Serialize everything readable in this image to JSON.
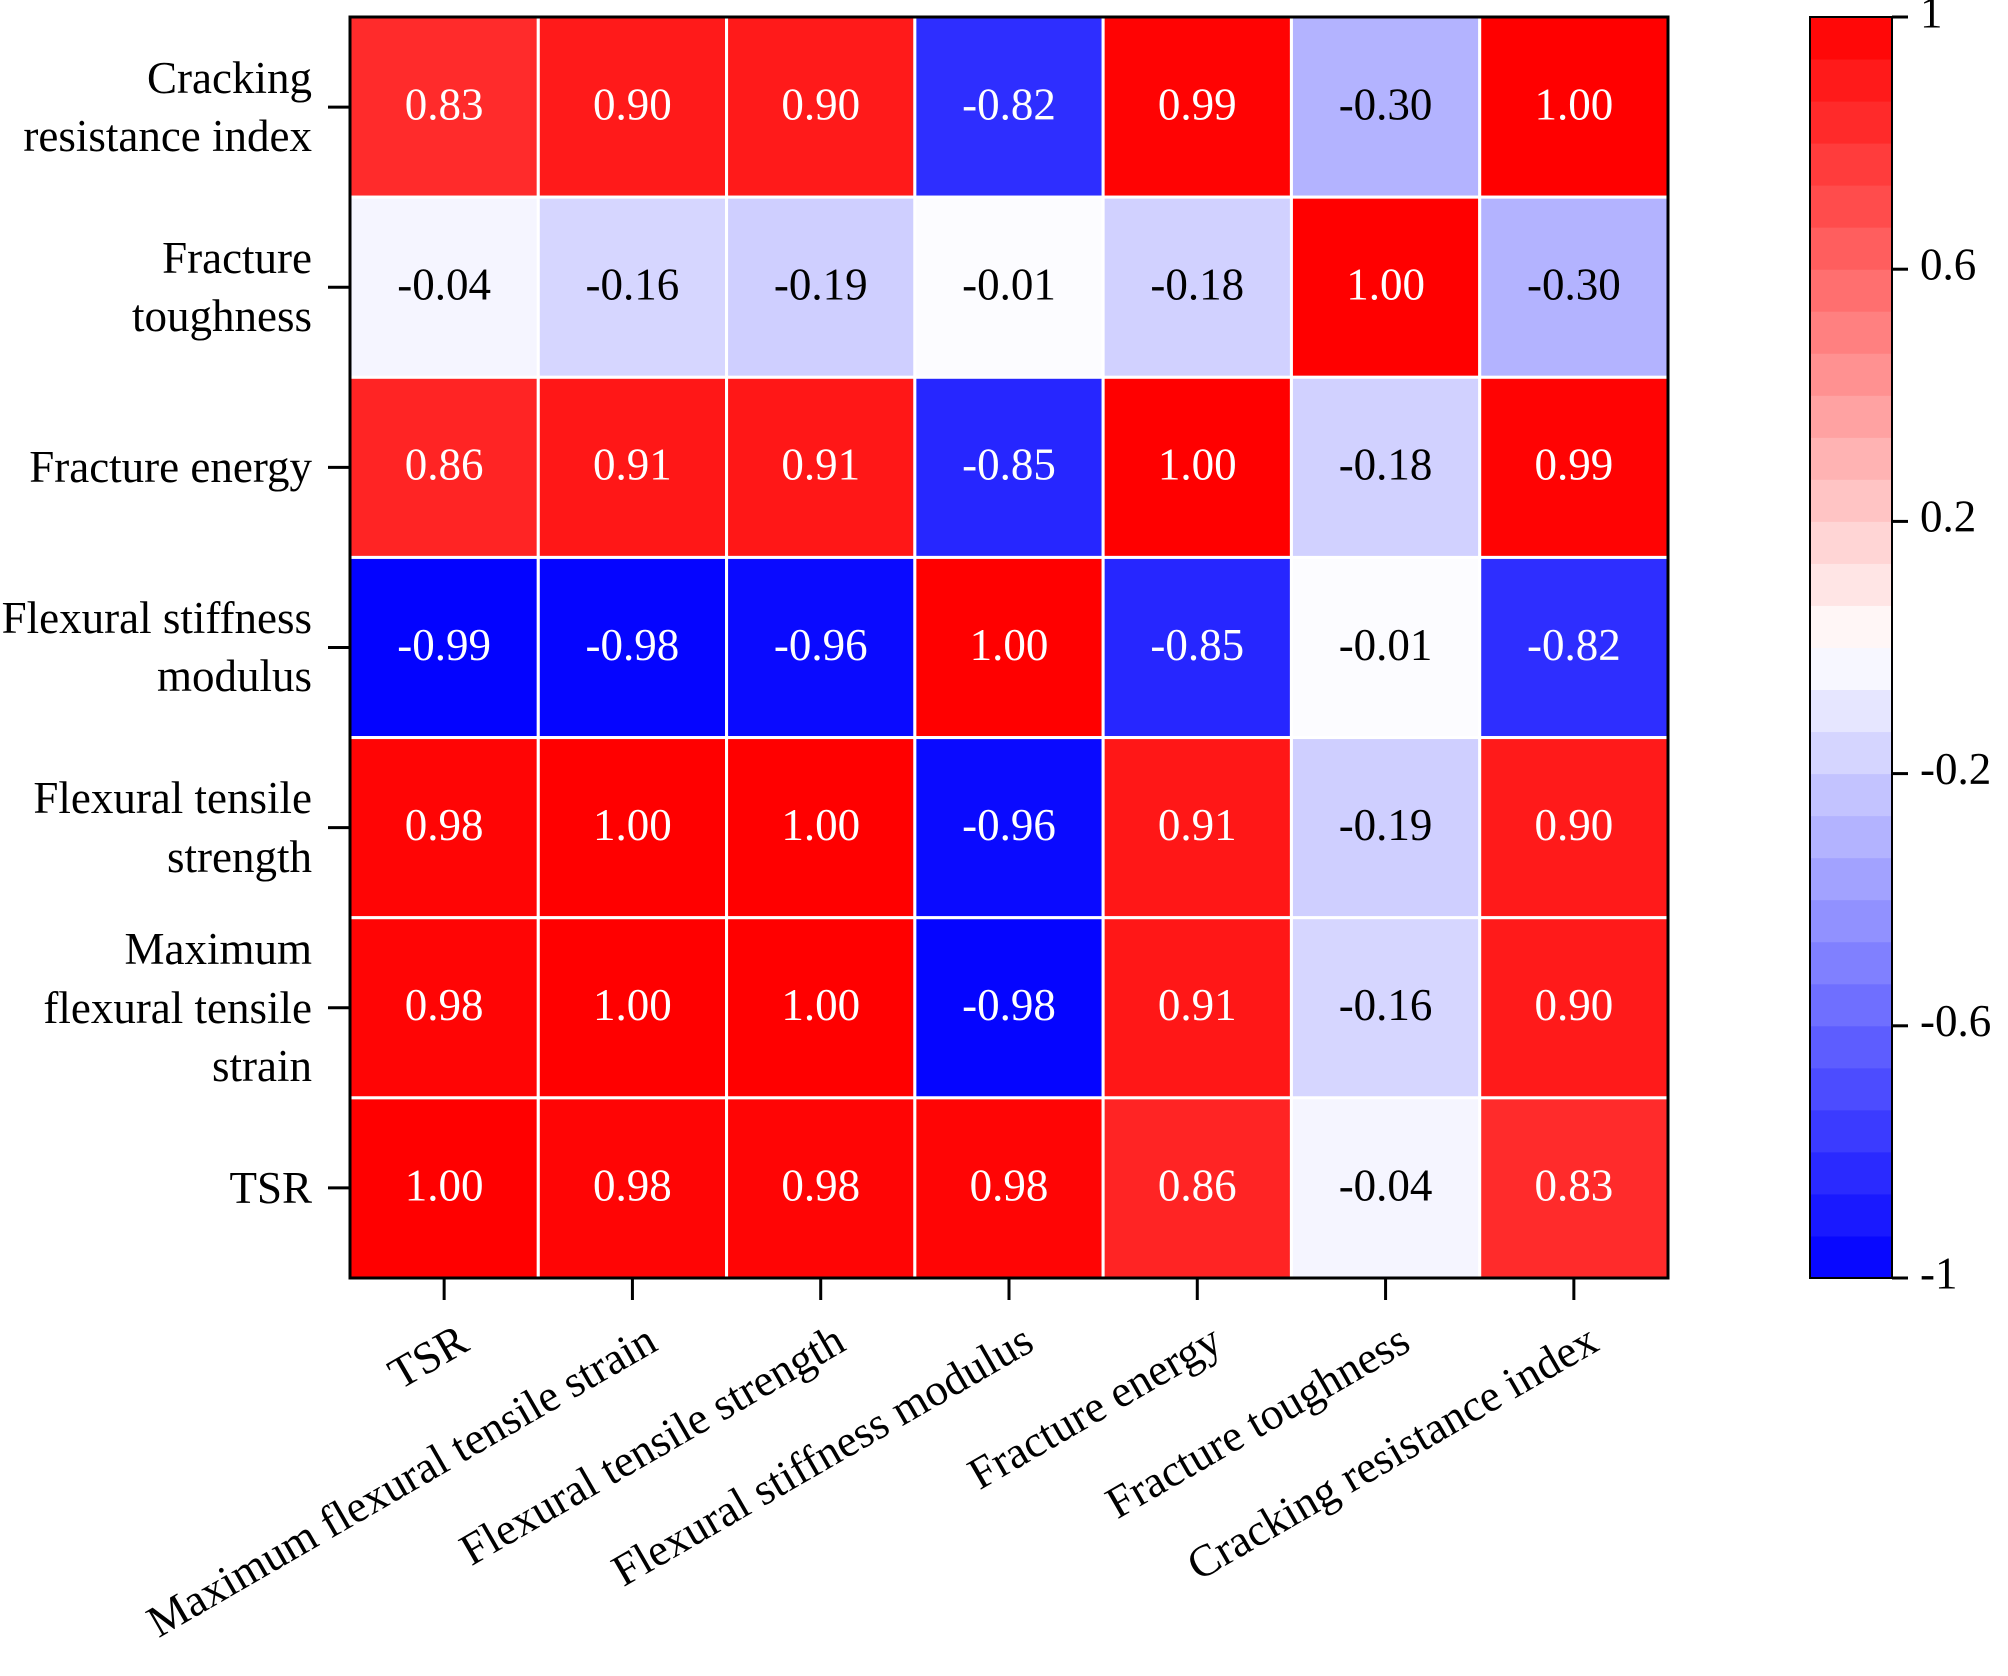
{
  "chart_data": {
    "type": "heatmap",
    "x_categories": [
      "TSR",
      "Maximum flexural tensile strain",
      "Flexural tensile strength",
      "Flexural stiffness modulus",
      "Fracture energy",
      "Fracture toughness",
      "Cracking resistance index"
    ],
    "y_categories": [
      "Cracking resistance index",
      "Fracture toughness",
      "Fracture energy",
      "Flexural stiffness modulus",
      "Flexural tensile strength",
      "Maximum flexural tensile strain",
      "TSR"
    ],
    "values": [
      [
        0.83,
        0.9,
        0.9,
        -0.82,
        0.99,
        -0.3,
        1
      ],
      [
        -0.04,
        -0.16,
        -0.19,
        -0.01,
        -0.18,
        1,
        -0.3
      ],
      [
        0.86,
        0.91,
        0.91,
        -0.85,
        1,
        -0.18,
        0.99
      ],
      [
        -0.99,
        -0.98,
        -0.96,
        1,
        -0.85,
        -0.01,
        -0.82
      ],
      [
        0.98,
        1,
        1,
        -0.96,
        0.91,
        -0.19,
        0.9
      ],
      [
        0.98,
        1,
        1,
        -0.98,
        0.91,
        -0.16,
        0.9
      ],
      [
        1,
        0.98,
        0.98,
        0.98,
        0.86,
        -0.04,
        0.83
      ]
    ],
    "value_labels": [
      [
        "0.83",
        "0.90",
        "0.90",
        "-0.82",
        "0.99",
        "-0.30",
        "1.00"
      ],
      [
        "-0.04",
        "-0.16",
        "-0.19",
        "-0.01",
        "-0.18",
        "1.00",
        "-0.30"
      ],
      [
        "0.86",
        "0.91",
        "0.91",
        "-0.85",
        "1.00",
        "-0.18",
        "0.99"
      ],
      [
        "-0.99",
        "-0.98",
        "-0.96",
        "1.00",
        "-0.85",
        "-0.01",
        "-0.82"
      ],
      [
        "0.98",
        "1.00",
        "1.00",
        "-0.96",
        "0.91",
        "-0.19",
        "0.90"
      ],
      [
        "0.98",
        "1.00",
        "1.00",
        "-0.98",
        "0.91",
        "-0.16",
        "0.90"
      ],
      [
        "1.00",
        "0.98",
        "0.98",
        "0.98",
        "0.86",
        "-0.04",
        "0.83"
      ]
    ],
    "zlim": [
      -1,
      1
    ],
    "zticks": [
      1,
      0.6,
      0.2,
      -0.2,
      -0.6,
      -1
    ],
    "colors": [
      "#0000ff",
      "#ffffff",
      "#ff0000"
    ],
    "color_steps": 30
  }
}
